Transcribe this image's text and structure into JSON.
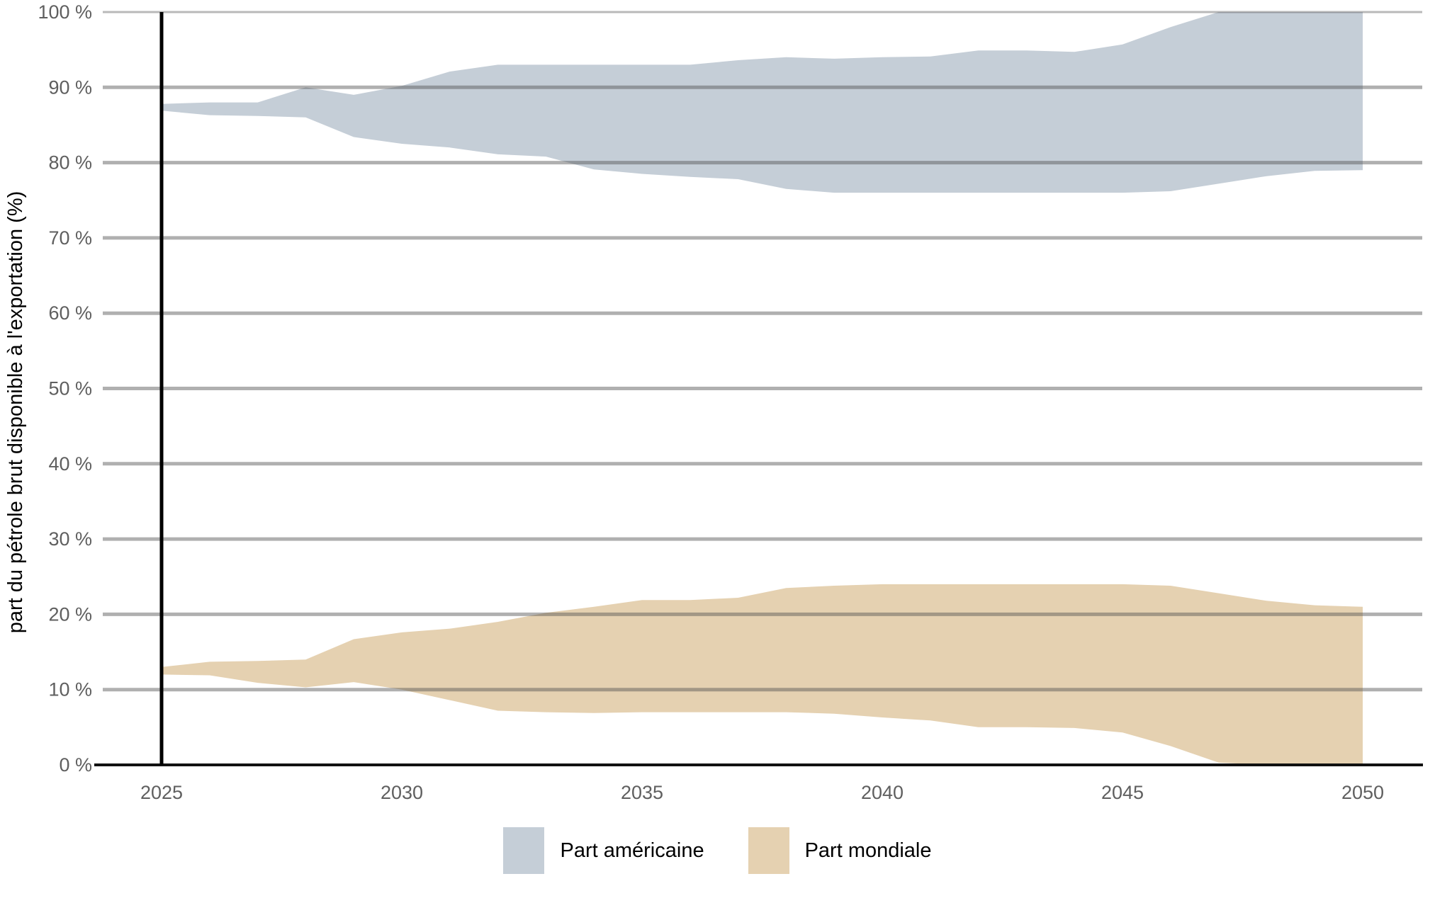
{
  "chart_data": {
    "type": "area",
    "description": "Two shaded uncertainty bands (min-max ranges) over years 2025-2050",
    "x": [
      2025,
      2026,
      2027,
      2028,
      2029,
      2030,
      2031,
      2032,
      2033,
      2034,
      2035,
      2036,
      2037,
      2038,
      2039,
      2040,
      2041,
      2042,
      2043,
      2044,
      2045,
      2046,
      2047,
      2048,
      2049,
      2050
    ],
    "series": [
      {
        "name": "Part américaine",
        "color": "#c5ced7",
        "upper": [
          87.8,
          88.0,
          88.0,
          90.0,
          89.0,
          90.2,
          92.1,
          93.0,
          93.0,
          93.0,
          93.0,
          93.0,
          93.6,
          94.0,
          93.8,
          94.0,
          94.1,
          94.9,
          94.9,
          94.7,
          95.7,
          98.0,
          100.0,
          100.0,
          100.0,
          100.0
        ],
        "lower": [
          86.9,
          86.3,
          86.2,
          86.0,
          83.4,
          82.5,
          82.0,
          81.1,
          80.8,
          79.1,
          78.5,
          78.1,
          77.8,
          76.5,
          76.0,
          76.0,
          76.0,
          76.0,
          76.0,
          76.0,
          76.0,
          76.2,
          77.2,
          78.2,
          78.9,
          79.0
        ]
      },
      {
        "name": "Part mondiale",
        "color": "#e5d1b1",
        "upper": [
          13.0,
          13.7,
          13.8,
          14.0,
          16.7,
          17.6,
          18.1,
          19.0,
          20.2,
          21.0,
          21.9,
          21.9,
          22.2,
          23.5,
          23.8,
          24.0,
          24.0,
          24.0,
          24.0,
          24.0,
          24.0,
          23.8,
          22.8,
          21.8,
          21.2,
          21.0
        ],
        "lower": [
          12.0,
          11.9,
          10.9,
          10.3,
          11.0,
          10.0,
          8.6,
          7.2,
          7.0,
          6.9,
          7.0,
          7.0,
          7.0,
          7.0,
          6.8,
          6.3,
          5.9,
          5.0,
          5.0,
          4.9,
          4.3,
          2.5,
          0.3,
          0.0,
          0.0,
          0.0
        ]
      }
    ],
    "title": "",
    "xlabel": "",
    "ylabel": "part du pétrole brut disponible à l'exportation (%)",
    "xlim": [
      2025,
      2050
    ],
    "ylim": [
      0,
      100
    ],
    "x_ticks": {
      "values": [
        2025,
        2030,
        2035,
        2040,
        2045,
        2050
      ],
      "labels": [
        "2025",
        "2030",
        "2035",
        "2040",
        "2045",
        "2050"
      ]
    },
    "y_ticks": {
      "values": [
        0,
        10,
        20,
        30,
        40,
        50,
        60,
        70,
        80,
        90,
        100
      ],
      "labels": [
        "0 %",
        "10 %",
        "20 %",
        "30 %",
        "40 %",
        "50 %",
        "60 %",
        "70 %",
        "80 %",
        "90 %",
        "100 %"
      ]
    },
    "grid": "horizontal-only, gridlines drawn over the bands",
    "annotations": {
      "vertical_black_line_at_x": 2025
    },
    "legend": {
      "position": "bottom-center",
      "entries": [
        "Part américaine",
        "Part mondiale"
      ]
    }
  },
  "styles": {
    "gridline_color_rgba": "rgba(80,80,80,0.45)",
    "topline_color_rgba": "rgba(80,80,80,0.40)",
    "axis_line_color": "#111111",
    "vertical_line_color": "#000000",
    "tick_label_color": "#5f5f5f"
  }
}
